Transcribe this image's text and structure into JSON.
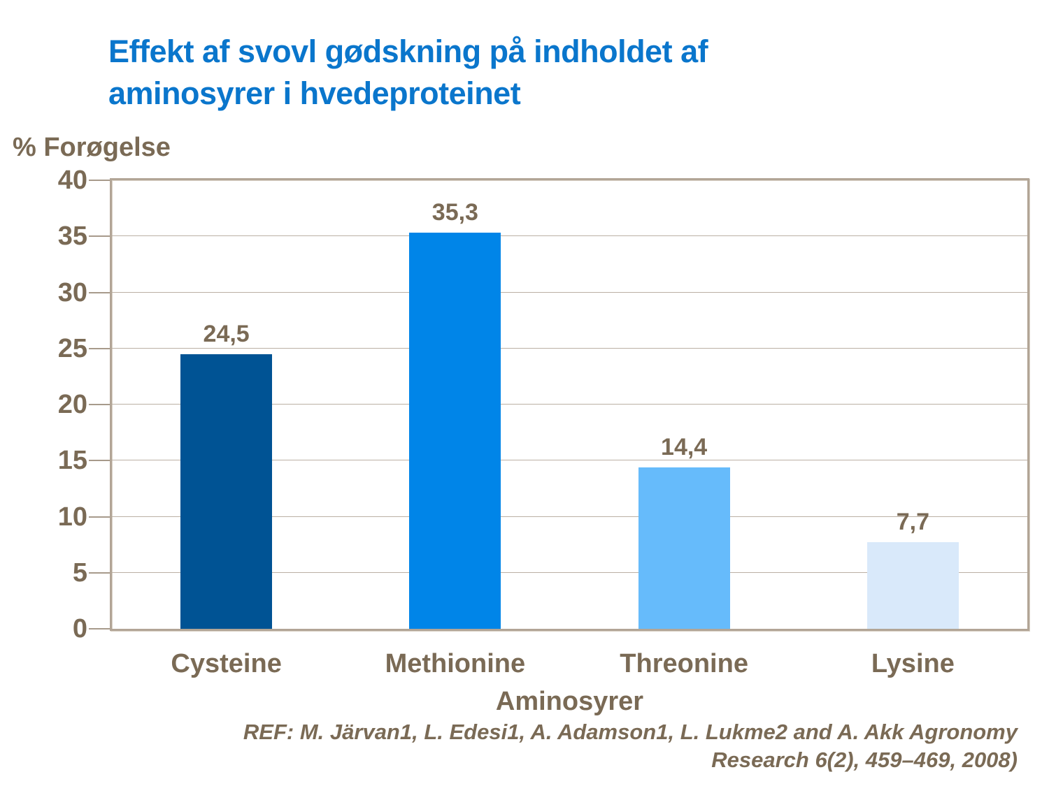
{
  "header": {
    "title": "Effekt af svovl gødskning på indholdet af\naminosyrer i hvedeproteinet"
  },
  "chart_data": {
    "type": "bar",
    "title": "Effekt af svovl gødskning på indholdet af aminosyrer i hvedeproteinet",
    "categories": [
      "Cysteine",
      "Methionine",
      "Threonine",
      "Lysine"
    ],
    "values": [
      24.5,
      35.3,
      14.4,
      7.7
    ],
    "value_labels": [
      "24,5",
      "35,3",
      "14,4",
      "7,7"
    ],
    "xlabel": "Aminosyrer",
    "ylabel": "% Forøgelse",
    "ylim": [
      0,
      40
    ],
    "ytick_step": 5,
    "yticks": [
      0,
      5,
      10,
      15,
      20,
      25,
      30,
      35,
      40
    ],
    "grid": true,
    "legend": false,
    "bar_colors": [
      "#005394",
      "#0085e8",
      "#66bbfb",
      "#d9e9fa"
    ]
  },
  "footer": {
    "ref_line1": "REF: M. Järvan1, L. Edesi1, A. Adamson1, L. Lukme2 and A. Akk Agronomy",
    "ref_line2": "Research 6(2), 459–469, 2008)"
  },
  "colors": {
    "title": "#0a76cc",
    "text": "#7a6a55",
    "frame": "#b2a596",
    "gridline": "#bbb0a4",
    "tick": "#a79a8b",
    "background": "#ffffff"
  }
}
